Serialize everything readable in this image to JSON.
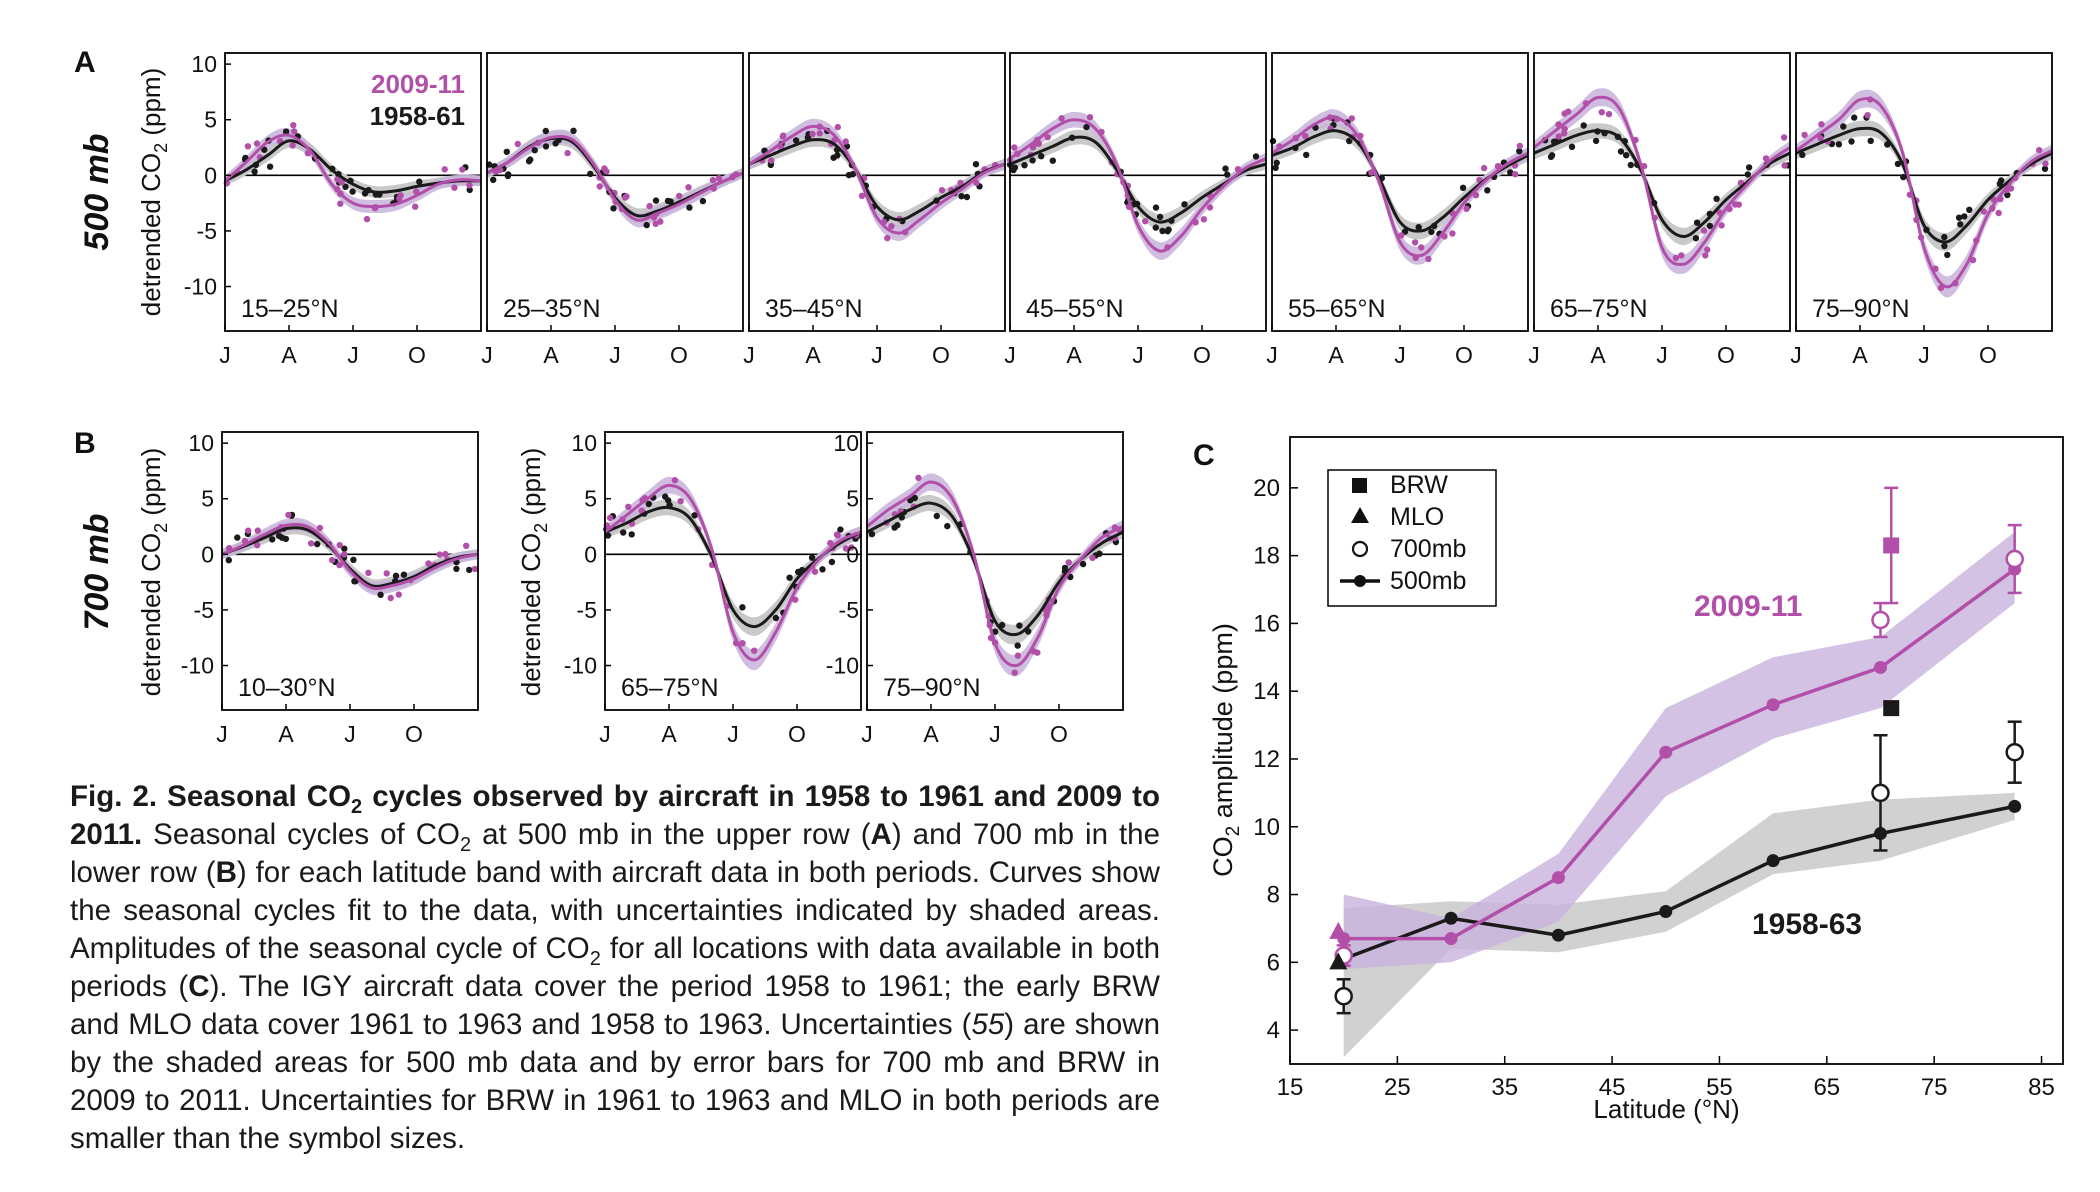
{
  "figure": {
    "colors": {
      "recent": "#b24fa8",
      "recent_band": "#c8b3dc",
      "early": "#1a1a1a",
      "early_band": "#c9c9c9"
    },
    "panel_letters": {
      "a": "A",
      "b": "B",
      "c": "C"
    },
    "row_labels": {
      "a": "500 mb",
      "b": "700 mb"
    },
    "ylabel_seasonal": "detrended CO₂ (ppm)",
    "ylabel_seasonal_main": "detrended CO",
    "ylabel_seasonal_sub": "2",
    "ylabel_seasonal_tail": " (ppm)",
    "month_ticks": [
      "J",
      "A",
      "J",
      "O"
    ],
    "legend_a": {
      "recent": "2009-11",
      "early": "1958-61"
    }
  },
  "caption": {
    "title_pre": "Fig. 2. Seasonal CO",
    "title_sub": "2",
    "title_post": " cycles observed by aircraft in 1958 to 1961 and 2009 to 2011.",
    "s1_pre": " Seasonal cycles of CO",
    "s1_sub": "2",
    "s1_mid1": " at 500 mb in the upper row (",
    "s1_a": "A",
    "s1_mid2": ") and 700 mb in the lower row (",
    "s1_b": "B",
    "s1_post": ") for each latitude band with aircraft data in both periods. Curves show the seasonal cycles fit to the data, with uncertainties indicated by shaded areas. Amplitudes of the seasonal cycle of CO",
    "s1_sub2": "2",
    "s1_post2": " for all locations with data available in both periods (",
    "s1_c": "C",
    "s1_end": "). The IGY aircraft data cover the period 1958 to 1961; the early BRW and MLO data cover 1961 to 1963 and 1958 to 1963. Uncertainties (",
    "s1_ref": "55",
    "s1_tail": ") are shown by the shaded areas for 500 mb data and by error bars for 700 mb and BRW in 2009 to 2011. Uncertainties for BRW in 1961 to 1963 and MLO in both periods are smaller than the symbol sizes."
  },
  "chart_data": [
    {
      "type": "line",
      "panel": "A",
      "level": "500 mb",
      "band_label": "15–25°N",
      "ylim": [
        -14,
        11
      ],
      "yticks": [
        -10,
        -5,
        0,
        5,
        10
      ],
      "x_months": [
        "J",
        "A",
        "J",
        "O"
      ],
      "series": [
        {
          "name": "2009-11",
          "x": [
            0,
            1,
            2,
            3,
            4,
            5,
            6,
            7,
            8,
            9,
            10,
            11,
            12
          ],
          "y": [
            -0.5,
            1.2,
            3.0,
            3.6,
            2.2,
            -0.8,
            -2.5,
            -2.8,
            -2.6,
            -1.8,
            -0.8,
            -0.4,
            -0.5
          ]
        },
        {
          "name": "1958-61",
          "x": [
            0,
            1,
            2,
            3,
            4,
            5,
            6,
            7,
            8,
            9,
            10,
            11,
            12
          ],
          "y": [
            -0.5,
            0.5,
            1.8,
            3.1,
            2.3,
            0.5,
            -0.8,
            -1.5,
            -1.4,
            -1.0,
            -0.7,
            -0.5,
            -0.5
          ]
        }
      ]
    },
    {
      "type": "line",
      "panel": "A",
      "level": "500 mb",
      "band_label": "25–35°N",
      "ylim": [
        -14,
        11
      ],
      "yticks": [
        -10,
        -5,
        0,
        5,
        10
      ],
      "x_months": [
        "J",
        "A",
        "J",
        "O"
      ],
      "series": [
        {
          "name": "2009-11",
          "x": [
            0,
            1,
            2,
            3,
            4,
            5,
            6,
            7,
            8,
            9,
            10,
            11,
            12
          ],
          "y": [
            0.2,
            1.2,
            2.5,
            3.4,
            3.2,
            1.0,
            -2.2,
            -4.0,
            -3.4,
            -2.6,
            -1.6,
            -0.6,
            0.2
          ]
        },
        {
          "name": "1958-61",
          "x": [
            0,
            1,
            2,
            3,
            4,
            5,
            6,
            7,
            8,
            9,
            10,
            11,
            12
          ],
          "y": [
            0.2,
            1.2,
            2.6,
            3.3,
            3.0,
            0.8,
            -2.0,
            -3.6,
            -3.2,
            -2.4,
            -1.5,
            -0.6,
            0.2
          ]
        }
      ]
    },
    {
      "type": "line",
      "panel": "A",
      "level": "500 mb",
      "band_label": "35–45°N",
      "ylim": [
        -14,
        11
      ],
      "yticks": [
        -10,
        -5,
        0,
        5,
        10
      ],
      "x_months": [
        "J",
        "A",
        "J",
        "O"
      ],
      "series": [
        {
          "name": "2009-11",
          "x": [
            0,
            1,
            2,
            3,
            4,
            5,
            6,
            7,
            8,
            9,
            10,
            11,
            12
          ],
          "y": [
            1.0,
            2.2,
            3.5,
            4.4,
            3.6,
            0.5,
            -3.8,
            -5.2,
            -4.0,
            -2.5,
            -1.2,
            0.2,
            1.0
          ]
        },
        {
          "name": "1958-61",
          "x": [
            0,
            1,
            2,
            3,
            4,
            5,
            6,
            7,
            8,
            9,
            10,
            11,
            12
          ],
          "y": [
            1.0,
            1.8,
            2.6,
            3.2,
            2.8,
            0.5,
            -2.8,
            -4.0,
            -3.2,
            -2.0,
            -1.0,
            0.3,
            1.0
          ]
        }
      ]
    },
    {
      "type": "line",
      "panel": "A",
      "level": "500 mb",
      "band_label": "45–55°N",
      "ylim": [
        -14,
        11
      ],
      "yticks": [
        -10,
        -5,
        0,
        5,
        10
      ],
      "x_months": [
        "J",
        "A",
        "J",
        "O"
      ],
      "series": [
        {
          "name": "2009-11",
          "x": [
            0,
            1,
            2,
            3,
            4,
            5,
            6,
            7,
            8,
            9,
            10,
            11,
            12
          ],
          "y": [
            1.5,
            2.8,
            4.2,
            5.0,
            4.2,
            1.0,
            -4.5,
            -6.8,
            -5.5,
            -3.0,
            -1.0,
            0.6,
            1.5
          ]
        },
        {
          "name": "1958-61",
          "x": [
            0,
            1,
            2,
            3,
            4,
            5,
            6,
            7,
            8,
            9,
            10,
            11,
            12
          ],
          "y": [
            1.0,
            1.8,
            2.6,
            3.4,
            3.0,
            0.5,
            -2.8,
            -4.2,
            -3.4,
            -2.0,
            -0.8,
            0.4,
            1.0
          ]
        }
      ]
    },
    {
      "type": "line",
      "panel": "A",
      "level": "500 mb",
      "band_label": "55–65°N",
      "ylim": [
        -14,
        11
      ],
      "yticks": [
        -10,
        -5,
        0,
        5,
        10
      ],
      "x_months": [
        "J",
        "A",
        "J",
        "O"
      ],
      "series": [
        {
          "name": "2009-11",
          "x": [
            0,
            1,
            2,
            3,
            4,
            5,
            6,
            7,
            8,
            9,
            10,
            11,
            12
          ],
          "y": [
            2.0,
            3.2,
            4.6,
            5.2,
            3.6,
            -0.5,
            -6.0,
            -7.2,
            -5.2,
            -2.5,
            -0.5,
            1.0,
            2.0
          ]
        },
        {
          "name": "1958-61",
          "x": [
            0,
            1,
            2,
            3,
            4,
            5,
            6,
            7,
            8,
            9,
            10,
            11,
            12
          ],
          "y": [
            1.8,
            2.5,
            3.5,
            4.0,
            3.0,
            -0.2,
            -4.2,
            -5.0,
            -3.8,
            -2.0,
            -0.4,
            0.8,
            1.8
          ]
        }
      ]
    },
    {
      "type": "line",
      "panel": "A",
      "level": "500 mb",
      "band_label": "65–75°N",
      "ylim": [
        -14,
        11
      ],
      "yticks": [
        -10,
        -5,
        0,
        5,
        10
      ],
      "x_months": [
        "J",
        "A",
        "J",
        "O"
      ],
      "series": [
        {
          "name": "2009-11",
          "x": [
            0,
            1,
            2,
            3,
            4,
            5,
            6,
            7,
            8,
            9,
            10,
            11,
            12
          ],
          "y": [
            2.5,
            4.0,
            5.5,
            7.0,
            6.0,
            1.0,
            -6.5,
            -8.0,
            -6.0,
            -3.0,
            -0.8,
            1.2,
            2.5
          ]
        },
        {
          "name": "1958-61",
          "x": [
            0,
            1,
            2,
            3,
            4,
            5,
            6,
            7,
            8,
            9,
            10,
            11,
            12
          ],
          "y": [
            2.0,
            2.8,
            3.6,
            4.0,
            3.4,
            0.5,
            -4.0,
            -5.5,
            -4.2,
            -2.2,
            -0.6,
            1.0,
            2.0
          ]
        }
      ]
    },
    {
      "type": "line",
      "panel": "A",
      "level": "500 mb",
      "band_label": "75–90°N",
      "ylim": [
        -14,
        11
      ],
      "yticks": [
        -10,
        -5,
        0,
        5,
        10
      ],
      "x_months": [
        "J",
        "A",
        "J",
        "O"
      ],
      "series": [
        {
          "name": "2009-11",
          "x": [
            0,
            1,
            2,
            3,
            4,
            5,
            6,
            7,
            8,
            9,
            10,
            11,
            12
          ],
          "y": [
            2.2,
            3.6,
            5.0,
            6.8,
            6.2,
            2.0,
            -6.5,
            -10.0,
            -8.0,
            -3.5,
            -0.8,
            1.2,
            2.2
          ]
        },
        {
          "name": "1958-61",
          "x": [
            0,
            1,
            2,
            3,
            4,
            5,
            6,
            7,
            8,
            9,
            10,
            11,
            12
          ],
          "y": [
            2.0,
            2.8,
            3.6,
            4.2,
            3.8,
            1.0,
            -4.5,
            -6.0,
            -4.5,
            -2.2,
            -0.5,
            1.0,
            2.0
          ]
        }
      ]
    },
    {
      "type": "line",
      "panel": "B",
      "level": "700 mb",
      "band_label": "10–30°N",
      "ylim": [
        -14,
        11
      ],
      "yticks": [
        -10,
        -5,
        0,
        5,
        10
      ],
      "x_months": [
        "J",
        "A",
        "J",
        "O"
      ],
      "series": [
        {
          "name": "2009-11",
          "x": [
            0,
            1,
            2,
            3,
            4,
            5,
            6,
            7,
            8,
            9,
            10,
            11,
            12
          ],
          "y": [
            0.0,
            0.8,
            1.8,
            2.6,
            2.5,
            1.0,
            -1.5,
            -3.0,
            -2.8,
            -2.2,
            -1.2,
            -0.4,
            0.0
          ]
        },
        {
          "name": "1958-61",
          "x": [
            0,
            1,
            2,
            3,
            4,
            5,
            6,
            7,
            8,
            9,
            10,
            11,
            12
          ],
          "y": [
            0.0,
            0.7,
            1.5,
            2.3,
            2.2,
            0.8,
            -1.3,
            -2.8,
            -2.6,
            -2.0,
            -1.0,
            -0.3,
            0.0
          ]
        }
      ]
    },
    {
      "type": "line",
      "panel": "B",
      "level": "700 mb",
      "band_label": "65–75°N",
      "ylim": [
        -14,
        11
      ],
      "yticks": [
        -10,
        -5,
        0,
        5,
        10
      ],
      "x_months": [
        "J",
        "A",
        "J",
        "O"
      ],
      "series": [
        {
          "name": "2009-11",
          "x": [
            0,
            1,
            2,
            3,
            4,
            5,
            6,
            7,
            8,
            9,
            10,
            11,
            12
          ],
          "y": [
            2.0,
            3.5,
            5.0,
            6.2,
            5.0,
            0.5,
            -7.0,
            -9.5,
            -7.0,
            -3.0,
            -0.5,
            1.2,
            2.0
          ]
        },
        {
          "name": "1958-61",
          "x": [
            0,
            1,
            2,
            3,
            4,
            5,
            6,
            7,
            8,
            9,
            10,
            11,
            12
          ],
          "y": [
            2.0,
            2.8,
            3.8,
            4.2,
            3.2,
            -0.2,
            -5.0,
            -6.5,
            -5.0,
            -2.2,
            -0.4,
            1.0,
            2.0
          ]
        }
      ]
    },
    {
      "type": "line",
      "panel": "B",
      "level": "700 mb",
      "band_label": "75–90°N",
      "ylim": [
        -14,
        11
      ],
      "yticks": [
        -10,
        -5,
        0,
        5,
        10
      ],
      "x_months": [
        "J",
        "A",
        "J",
        "O"
      ],
      "series": [
        {
          "name": "2009-11",
          "x": [
            0,
            1,
            2,
            3,
            4,
            5,
            6,
            7,
            8,
            9,
            10,
            11,
            12
          ],
          "y": [
            2.5,
            4.0,
            5.2,
            6.5,
            5.0,
            0.0,
            -8.0,
            -10.0,
            -7.5,
            -3.0,
            -0.5,
            1.5,
            2.5
          ]
        },
        {
          "name": "1958-61",
          "x": [
            0,
            1,
            2,
            3,
            4,
            5,
            6,
            7,
            8,
            9,
            10,
            11,
            12
          ],
          "y": [
            2.0,
            3.0,
            4.0,
            4.6,
            3.4,
            -0.5,
            -6.0,
            -7.2,
            -5.5,
            -2.5,
            -0.5,
            1.0,
            2.0
          ]
        }
      ]
    },
    {
      "type": "line",
      "panel": "C",
      "xlabel": "Latitude (°N)",
      "ylabel": "CO₂ amplitude (ppm)",
      "ylabel_main": "CO",
      "ylabel_sub": "2",
      "ylabel_tail": " amplitude (ppm)",
      "xlim": [
        15,
        87
      ],
      "ylim": [
        3,
        21.5
      ],
      "xticks": [
        15,
        25,
        35,
        45,
        55,
        65,
        75,
        85
      ],
      "yticks": [
        4,
        6,
        8,
        10,
        12,
        14,
        16,
        18,
        20
      ],
      "legend": [
        "BRW",
        "MLO",
        "700mb",
        "500mb"
      ],
      "legend_placement": "top-left",
      "series": [
        {
          "name": "2009-11",
          "role": "500mb",
          "x": [
            20,
            30,
            40,
            50,
            60,
            70,
            82.5
          ],
          "y": [
            6.7,
            6.7,
            8.5,
            12.2,
            13.6,
            14.7,
            17.6
          ],
          "band_lower": [
            5.8,
            6.0,
            7.2,
            10.9,
            12.6,
            13.5,
            16.6
          ],
          "band_upper": [
            8.0,
            7.3,
            9.2,
            13.5,
            15.0,
            15.6,
            18.7
          ]
        },
        {
          "name": "1958-63",
          "role": "500mb",
          "x": [
            20,
            30,
            40,
            50,
            60,
            70,
            82.5
          ],
          "y": [
            6.1,
            7.3,
            6.8,
            7.5,
            9.0,
            9.8,
            10.6
          ],
          "band_lower": [
            3.2,
            6.4,
            6.3,
            6.9,
            8.6,
            9.0,
            10.2
          ],
          "band_upper": [
            7.6,
            7.8,
            7.7,
            8.1,
            10.4,
            10.8,
            11.0
          ]
        },
        {
          "name": "2009-11 700mb",
          "x": [
            20,
            70,
            82.5
          ],
          "y": [
            6.2,
            16.1,
            17.9
          ],
          "err": [
            0.3,
            0.5,
            1.0
          ]
        },
        {
          "name": "1958-63 700mb",
          "x": [
            20,
            70,
            82.5
          ],
          "y": [
            5.0,
            11.0,
            12.2
          ],
          "err": [
            0.5,
            1.7,
            0.9
          ]
        },
        {
          "name": "BRW 2009-11",
          "x": [
            71
          ],
          "y": [
            18.3
          ],
          "err": [
            1.7
          ]
        },
        {
          "name": "BRW 1961-63",
          "x": [
            71
          ],
          "y": [
            13.5
          ]
        },
        {
          "name": "MLO 2009-11",
          "x": [
            19.5
          ],
          "y": [
            6.9
          ]
        },
        {
          "name": "MLO 1958-63",
          "x": [
            19.5
          ],
          "y": [
            6.0
          ]
        }
      ],
      "annotations": [
        "2009-11",
        "1958-63"
      ]
    }
  ]
}
